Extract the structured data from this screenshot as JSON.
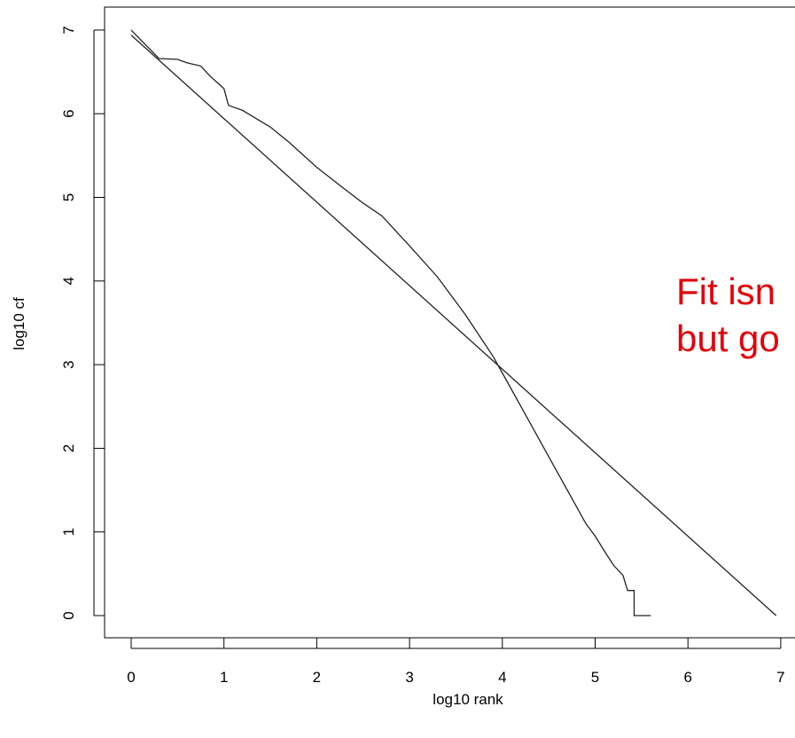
{
  "chart_data": {
    "type": "line",
    "xlabel": "log10 rank",
    "ylabel": "log10 cf",
    "xlim": [
      0,
      7
    ],
    "ylim": [
      0,
      7
    ],
    "x_ticks": [
      "0",
      "1",
      "2",
      "3",
      "4",
      "5",
      "6",
      "7"
    ],
    "y_ticks": [
      "0",
      "1",
      "2",
      "3",
      "4",
      "5",
      "6",
      "7"
    ],
    "grid": false,
    "annotation": [
      "Fit isn",
      "but go"
    ],
    "series": [
      {
        "style": "step-curve",
        "points": [
          [
            0,
            7.0
          ],
          [
            0.3,
            6.66
          ],
          [
            0.5,
            6.65
          ],
          [
            0.6,
            6.61
          ],
          [
            0.75,
            6.57
          ],
          [
            0.85,
            6.45
          ],
          [
            1.0,
            6.3
          ],
          [
            1.05,
            6.1
          ],
          [
            1.2,
            6.04
          ],
          [
            1.5,
            5.84
          ],
          [
            1.7,
            5.66
          ],
          [
            2.0,
            5.36
          ],
          [
            2.3,
            5.1
          ],
          [
            2.5,
            4.93
          ],
          [
            2.7,
            4.78
          ],
          [
            3.0,
            4.42
          ],
          [
            3.3,
            4.05
          ],
          [
            3.6,
            3.6
          ],
          [
            3.9,
            3.1
          ],
          [
            4.0,
            2.9
          ],
          [
            4.3,
            2.3
          ],
          [
            4.6,
            1.7
          ],
          [
            4.8,
            1.3
          ],
          [
            4.9,
            1.1
          ],
          [
            5.0,
            0.95
          ],
          [
            5.1,
            0.77
          ],
          [
            5.2,
            0.6
          ],
          [
            5.3,
            0.48
          ],
          [
            5.35,
            0.3
          ],
          [
            5.42,
            0.3
          ],
          [
            5.42,
            0.0
          ],
          [
            5.6,
            0.0
          ]
        ]
      },
      {
        "style": "fit-line",
        "points": [
          [
            0,
            6.94
          ],
          [
            6.95,
            0.0
          ]
        ]
      }
    ]
  }
}
